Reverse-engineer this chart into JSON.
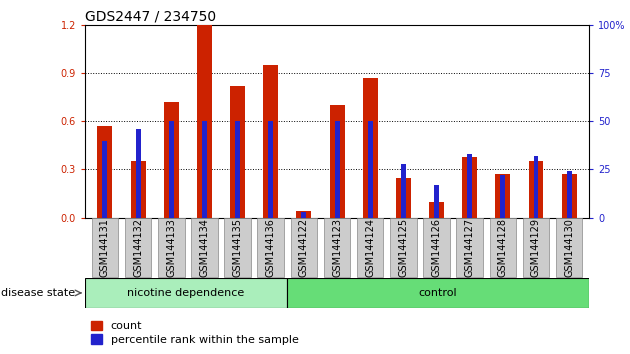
{
  "title": "GDS2447 / 234750",
  "samples": [
    "GSM144131",
    "GSM144132",
    "GSM144133",
    "GSM144134",
    "GSM144135",
    "GSM144136",
    "GSM144122",
    "GSM144123",
    "GSM144124",
    "GSM144125",
    "GSM144126",
    "GSM144127",
    "GSM144128",
    "GSM144129",
    "GSM144130"
  ],
  "count_values": [
    0.57,
    0.35,
    0.72,
    1.2,
    0.82,
    0.95,
    0.04,
    0.7,
    0.87,
    0.25,
    0.1,
    0.38,
    0.27,
    0.35,
    0.27
  ],
  "percentile_values": [
    40,
    46,
    50,
    50,
    50,
    50,
    3,
    50,
    50,
    28,
    17,
    33,
    22,
    32,
    24
  ],
  "nicotine_count": 6,
  "control_count": 9,
  "ylim_left": [
    0,
    1.2
  ],
  "ylim_right": [
    0,
    100
  ],
  "yticks_left": [
    0,
    0.3,
    0.6,
    0.9,
    1.2
  ],
  "yticks_right": [
    0,
    25,
    50,
    75,
    100
  ],
  "bar_color_red": "#cc2200",
  "bar_color_blue": "#2222cc",
  "bg_color_nicotine": "#aaeebb",
  "bg_color_control": "#66dd77",
  "bg_color_sample": "#cccccc",
  "title_fontsize": 10,
  "tick_fontsize": 7,
  "label_fontsize": 8,
  "bar_width": 0.45,
  "blue_bar_width": 0.15
}
